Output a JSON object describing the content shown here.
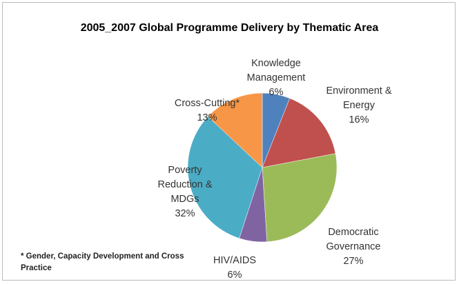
{
  "chart_data": {
    "type": "pie",
    "title": "2005_2007 Global Programme Delivery by Thematic Area",
    "categories": [
      "Knowledge Management",
      "Environment & Energy",
      "Democratic Governance",
      "HIV/AIDS",
      "Poverty Reduction & MDGs",
      "Cross-Cutting*"
    ],
    "values": [
      6,
      16,
      27,
      6,
      32,
      13
    ],
    "value_labels": [
      "6%",
      "16%",
      "27%",
      "6%",
      "32%",
      "13%"
    ],
    "colors": [
      "#4f81bd",
      "#c0504d",
      "#9bbb59",
      "#8064a2",
      "#4bacc6",
      "#f79646"
    ],
    "footnote": "* Gender, Capacity Development and Cross Practice"
  }
}
